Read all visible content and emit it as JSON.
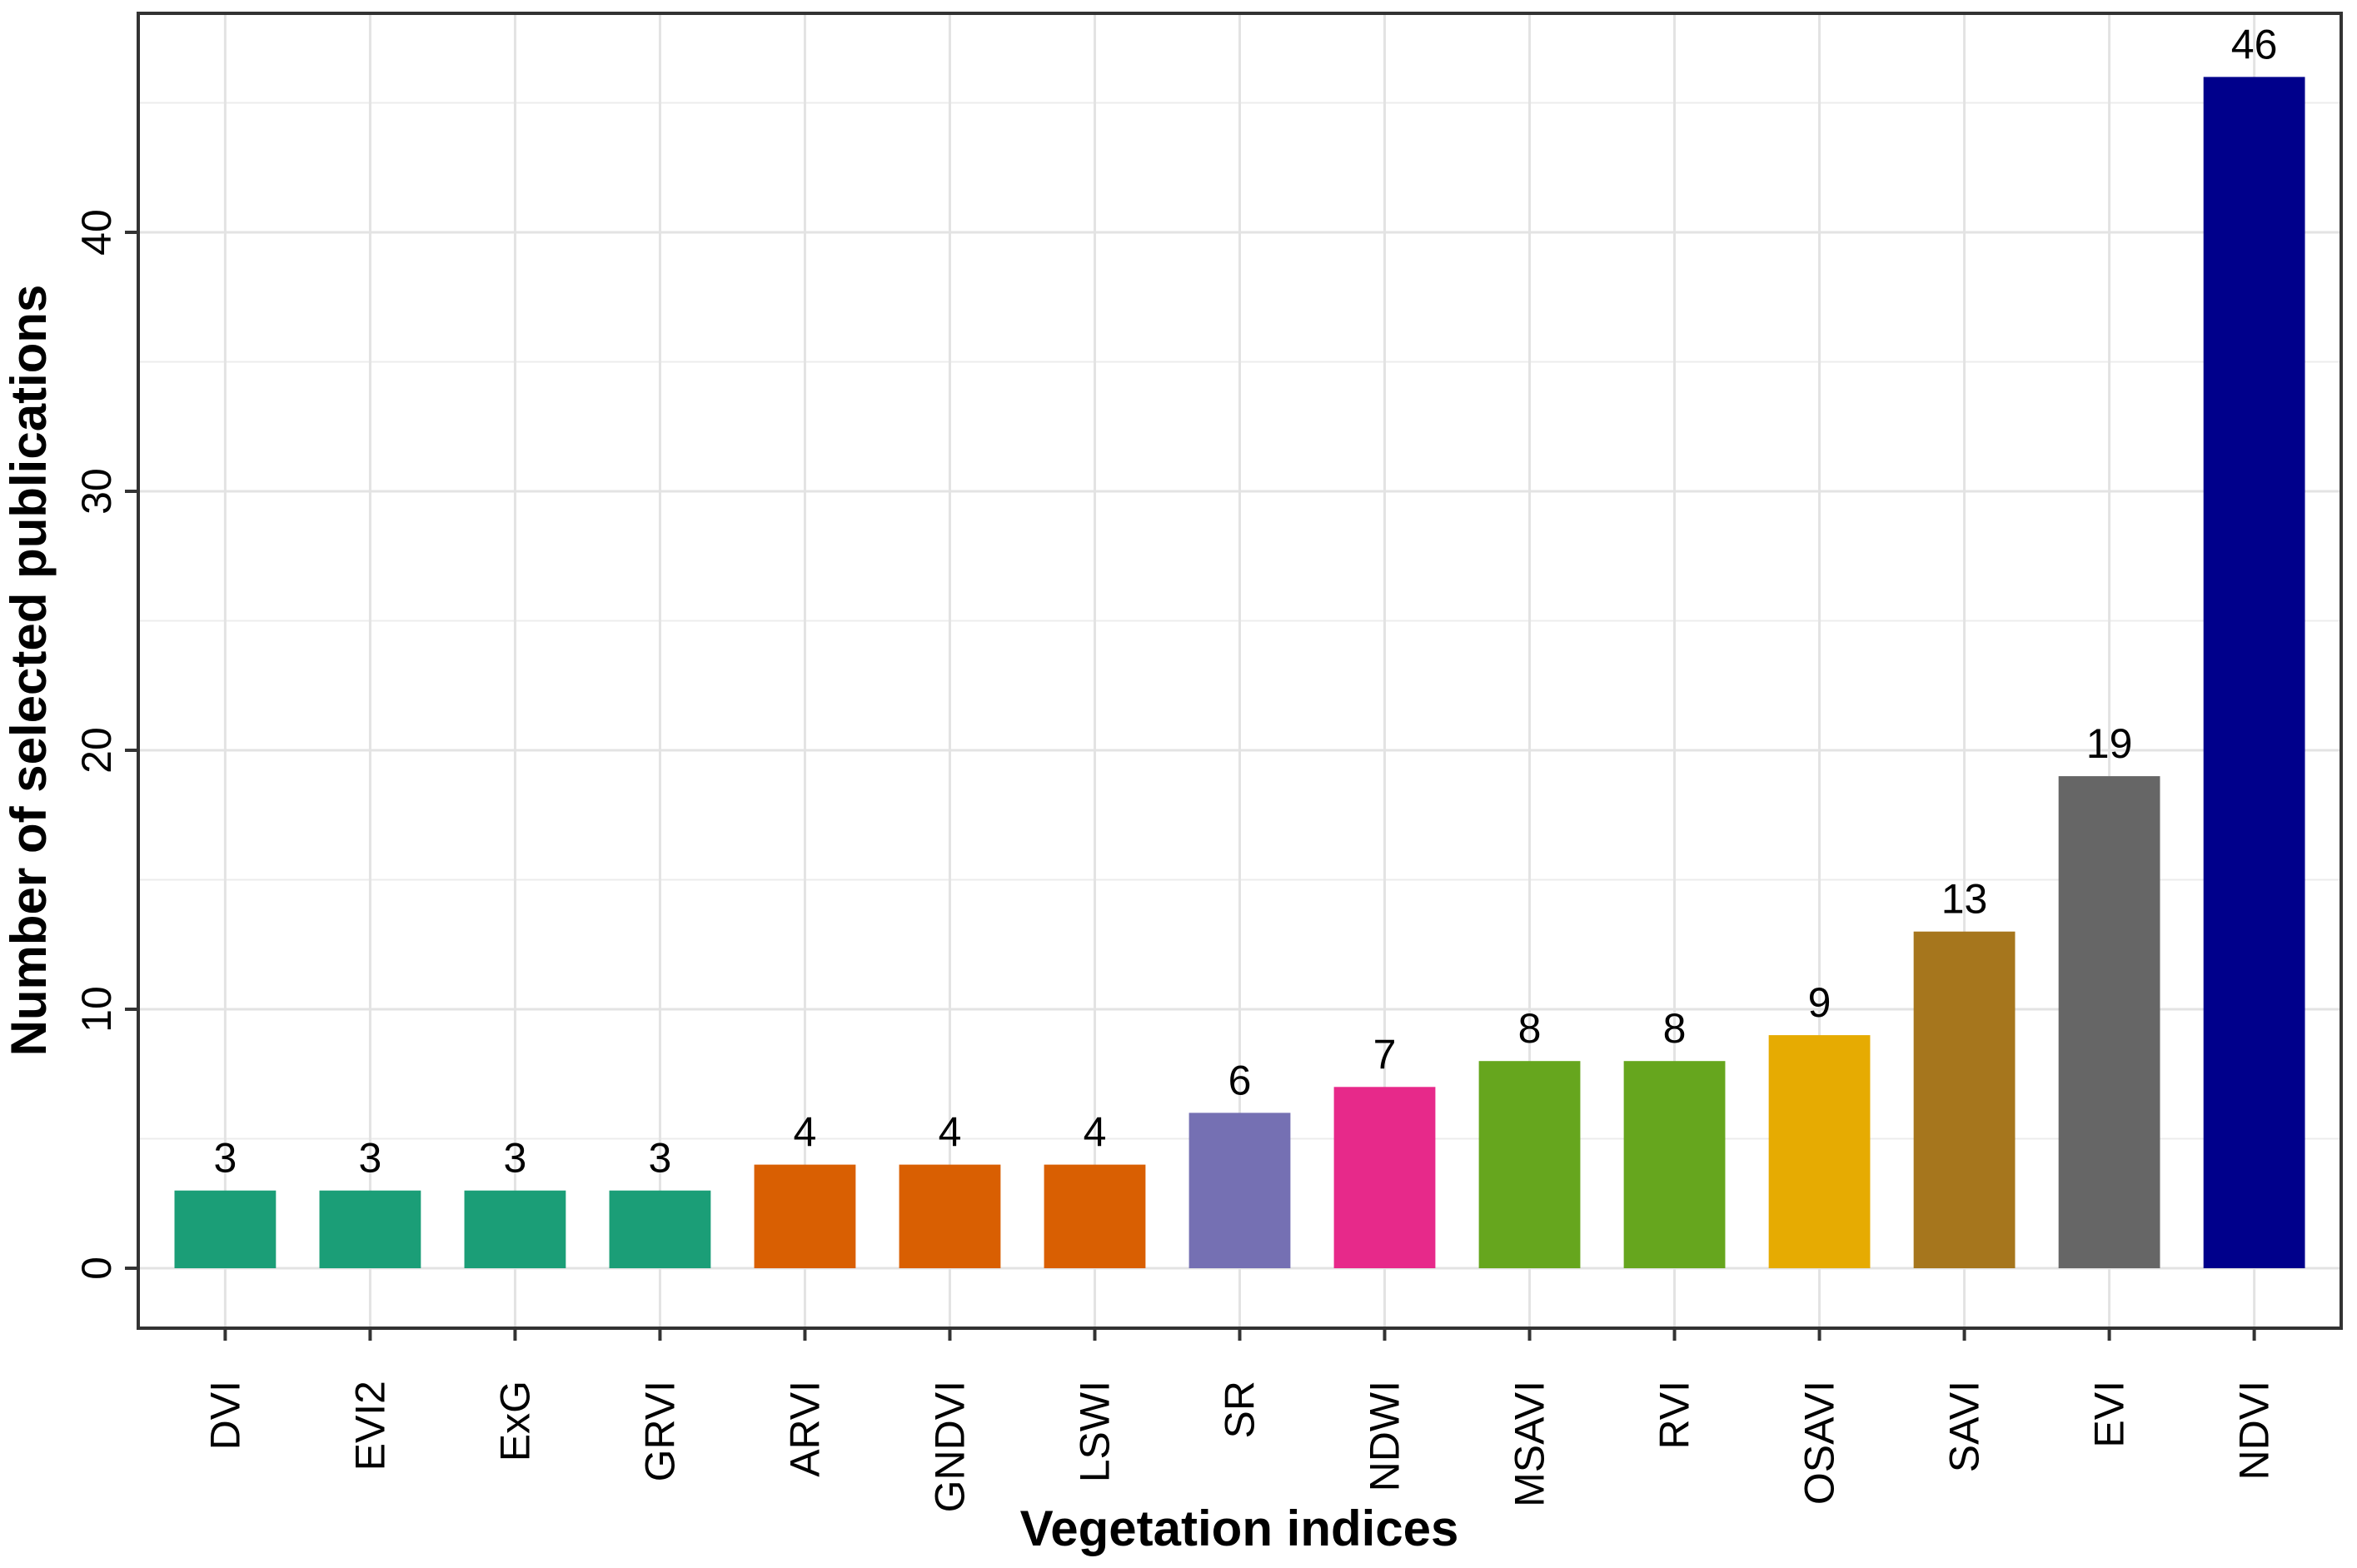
{
  "figure": {
    "background": "#FFFFFF"
  },
  "chart_data": {
    "type": "bar",
    "title": "",
    "xlabel": "Vegetation indices",
    "ylabel": "Number of selected publications",
    "categories": [
      "DVI",
      "EVI2",
      "ExG",
      "GRVI",
      "ARVI",
      "GNDVI",
      "LSWI",
      "SR",
      "NDWI",
      "MSAVI",
      "RVI",
      "OSAVI",
      "SAVI",
      "EVI",
      "NDVI"
    ],
    "values": [
      3,
      3,
      3,
      3,
      4,
      4,
      4,
      6,
      7,
      8,
      8,
      9,
      13,
      19,
      46
    ],
    "value_labels": [
      "3",
      "3",
      "3",
      "3",
      "4",
      "4",
      "4",
      "6",
      "7",
      "8",
      "8",
      "9",
      "13",
      "19",
      "46"
    ],
    "bar_colors": [
      "#1B9E77",
      "#1B9E77",
      "#1B9E77",
      "#1B9E77",
      "#D95F02",
      "#D95F02",
      "#D95F02",
      "#7570B3",
      "#E7298A",
      "#66A61E",
      "#66A61E",
      "#E6AB02",
      "#A6761D",
      "#666666",
      "#00008B"
    ],
    "y_ticks": [
      0,
      10,
      20,
      30,
      40
    ],
    "y_minor_ticks": [
      5,
      15,
      25,
      35,
      45
    ],
    "ylim": [
      -2.3,
      48.6
    ],
    "bar_width_fraction": 0.7,
    "grid": "horizontal major+minor, vertical major at category centers",
    "legend": "none",
    "grid_major_color": "#E3E3E3",
    "grid_minor_color": "#ECECEC",
    "panel_border_color": "#333333",
    "tick_mark_color": "#333333",
    "text_color": "#000000"
  }
}
